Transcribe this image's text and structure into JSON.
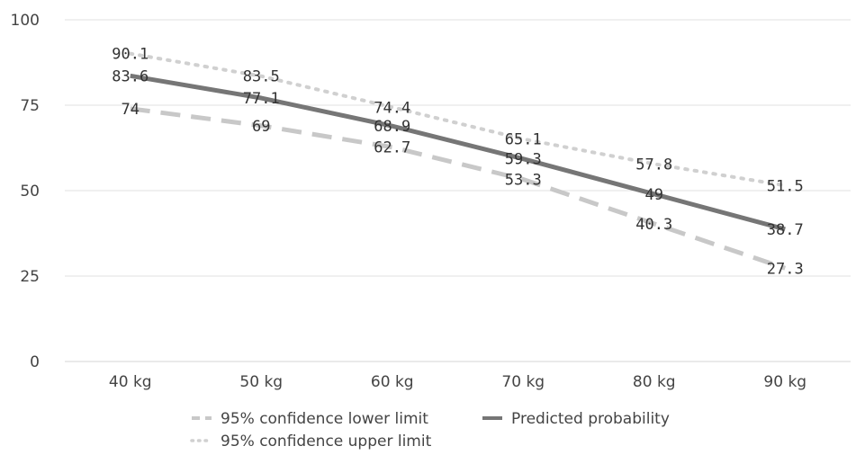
{
  "chart_data": {
    "type": "line",
    "categories": [
      "40 kg",
      "50 kg",
      "60 kg",
      "70 kg",
      "80 kg",
      "90 kg"
    ],
    "ylim": [
      0,
      100
    ],
    "yticks": [
      "0",
      "25",
      "50",
      "75",
      "100"
    ],
    "grid": true,
    "legend_position": "bottom",
    "series": [
      {
        "name": "95% confidence lower limit",
        "values": [
          74,
          69,
          62.7,
          53.3,
          40.3,
          27.3
        ],
        "labels": [
          "74",
          "69",
          "62.7",
          "53.3",
          "40.3",
          "27.3"
        ],
        "color": "#c8c8c8",
        "style": "dashed"
      },
      {
        "name": "Predicted probability",
        "values": [
          83.6,
          77.1,
          68.9,
          59.3,
          49,
          38.7
        ],
        "labels": [
          "83.6",
          "77.1",
          "68.9",
          "59.3",
          "49",
          "38.7"
        ],
        "color": "#767676",
        "style": "solid"
      },
      {
        "name": "95% confidence upper limit",
        "values": [
          90.1,
          83.5,
          74.4,
          65.1,
          57.8,
          51.5
        ],
        "labels": [
          "90.1",
          "83.5",
          "74.4",
          "65.1",
          "57.8",
          "51.5"
        ],
        "color": "#d0d0d0",
        "style": "dotted"
      }
    ]
  }
}
